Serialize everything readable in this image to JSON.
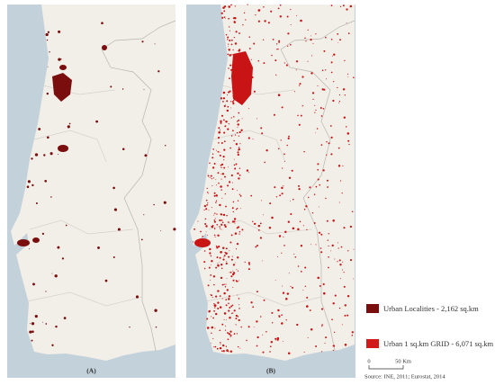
{
  "panels": [
    {
      "label": "(A)"
    },
    {
      "label": "(B)"
    }
  ],
  "legend": {
    "items": [
      {
        "label": "Urban Localities  - 2,162  sq.km"
      },
      {
        "label": "Urban 1 sq.km GRID - 6,071 sq.km"
      }
    ]
  },
  "scale": {
    "start": "0",
    "end": "50 Km"
  },
  "source": "Source: INE, 2011; Eurostat, 2014"
}
